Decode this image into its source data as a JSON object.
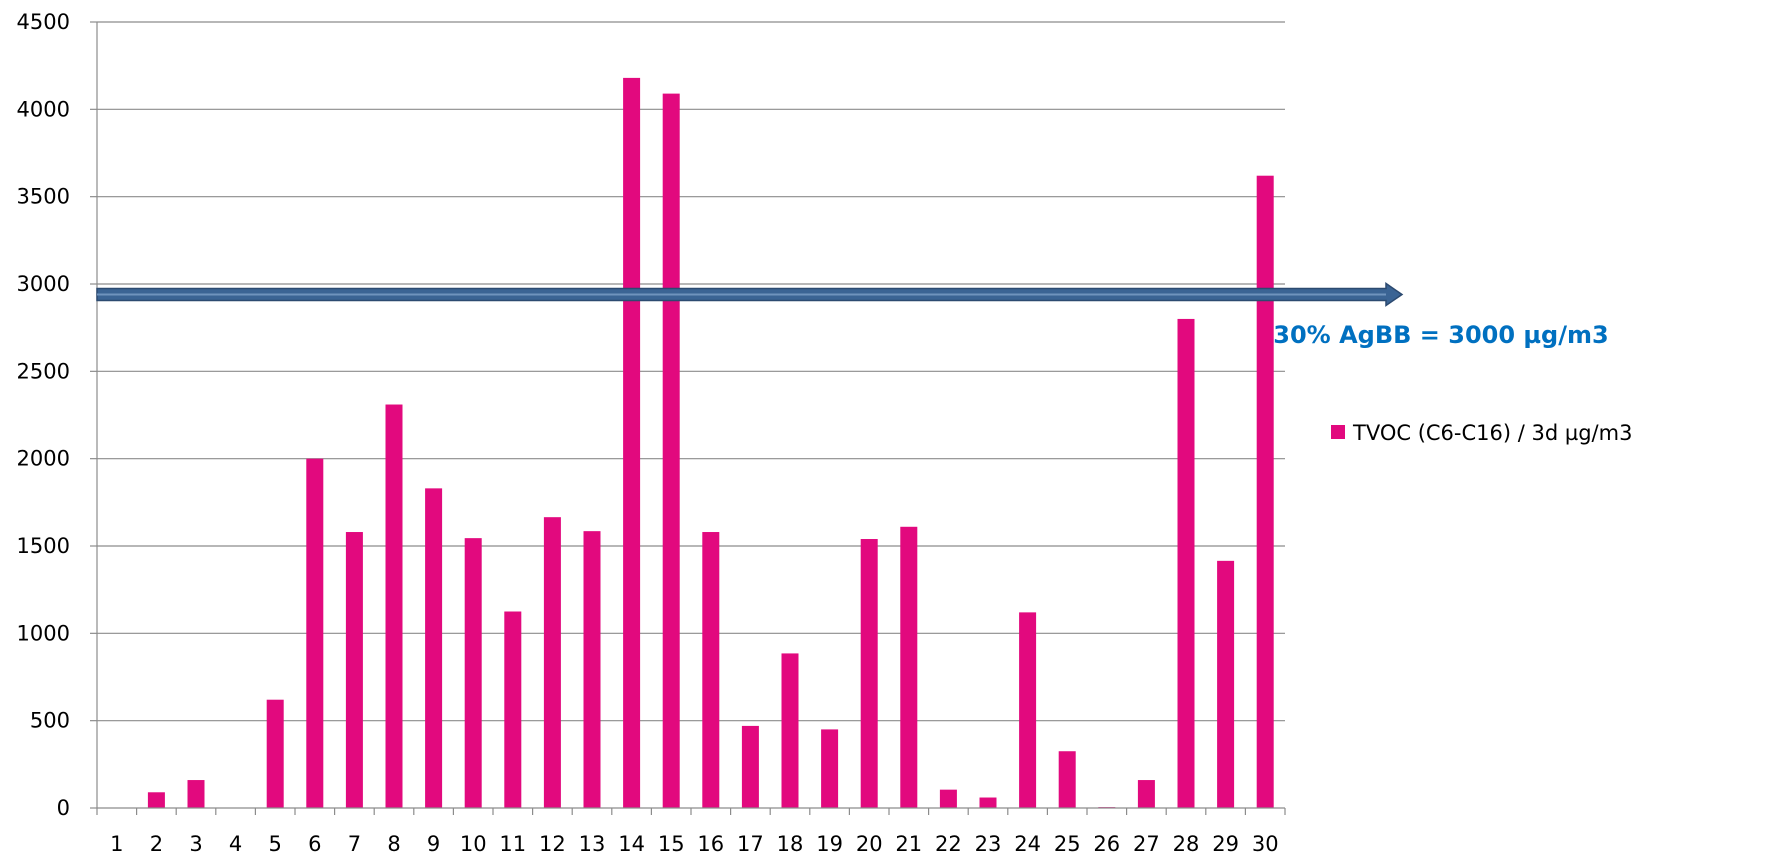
{
  "chart_data": {
    "type": "bar",
    "categories": [
      "1",
      "2",
      "3",
      "4",
      "5",
      "6",
      "7",
      "8",
      "9",
      "10",
      "11",
      "12",
      "13",
      "14",
      "15",
      "16",
      "17",
      "18",
      "19",
      "20",
      "21",
      "22",
      "23",
      "24",
      "25",
      "26",
      "27",
      "28",
      "29",
      "30"
    ],
    "series": [
      {
        "name": "TVOC (C6-C16) / 3d µg/m3",
        "color": "#e2097e",
        "values": [
          0,
          90,
          160,
          0,
          620,
          2000,
          1580,
          2310,
          1830,
          1545,
          1125,
          1665,
          1585,
          4180,
          4090,
          1580,
          470,
          885,
          450,
          1540,
          1610,
          105,
          60,
          1120,
          325,
          5,
          160,
          2800,
          1415,
          3620
        ]
      }
    ],
    "ylim": [
      0,
      4500
    ],
    "yticks": [
      "0",
      "500",
      "1000",
      "1500",
      "2000",
      "2500",
      "3000",
      "3500",
      "4000",
      "4500"
    ],
    "ytick_values": [
      0,
      500,
      1000,
      1500,
      2000,
      2500,
      3000,
      3500,
      4000,
      4500
    ],
    "grid": true,
    "legend_position": "right",
    "annotation": {
      "text": "30% AgBB = 3000 µg/m3",
      "color": "#0070c0",
      "arrow_value": 2940,
      "arrow_color": "#3b6494"
    }
  }
}
